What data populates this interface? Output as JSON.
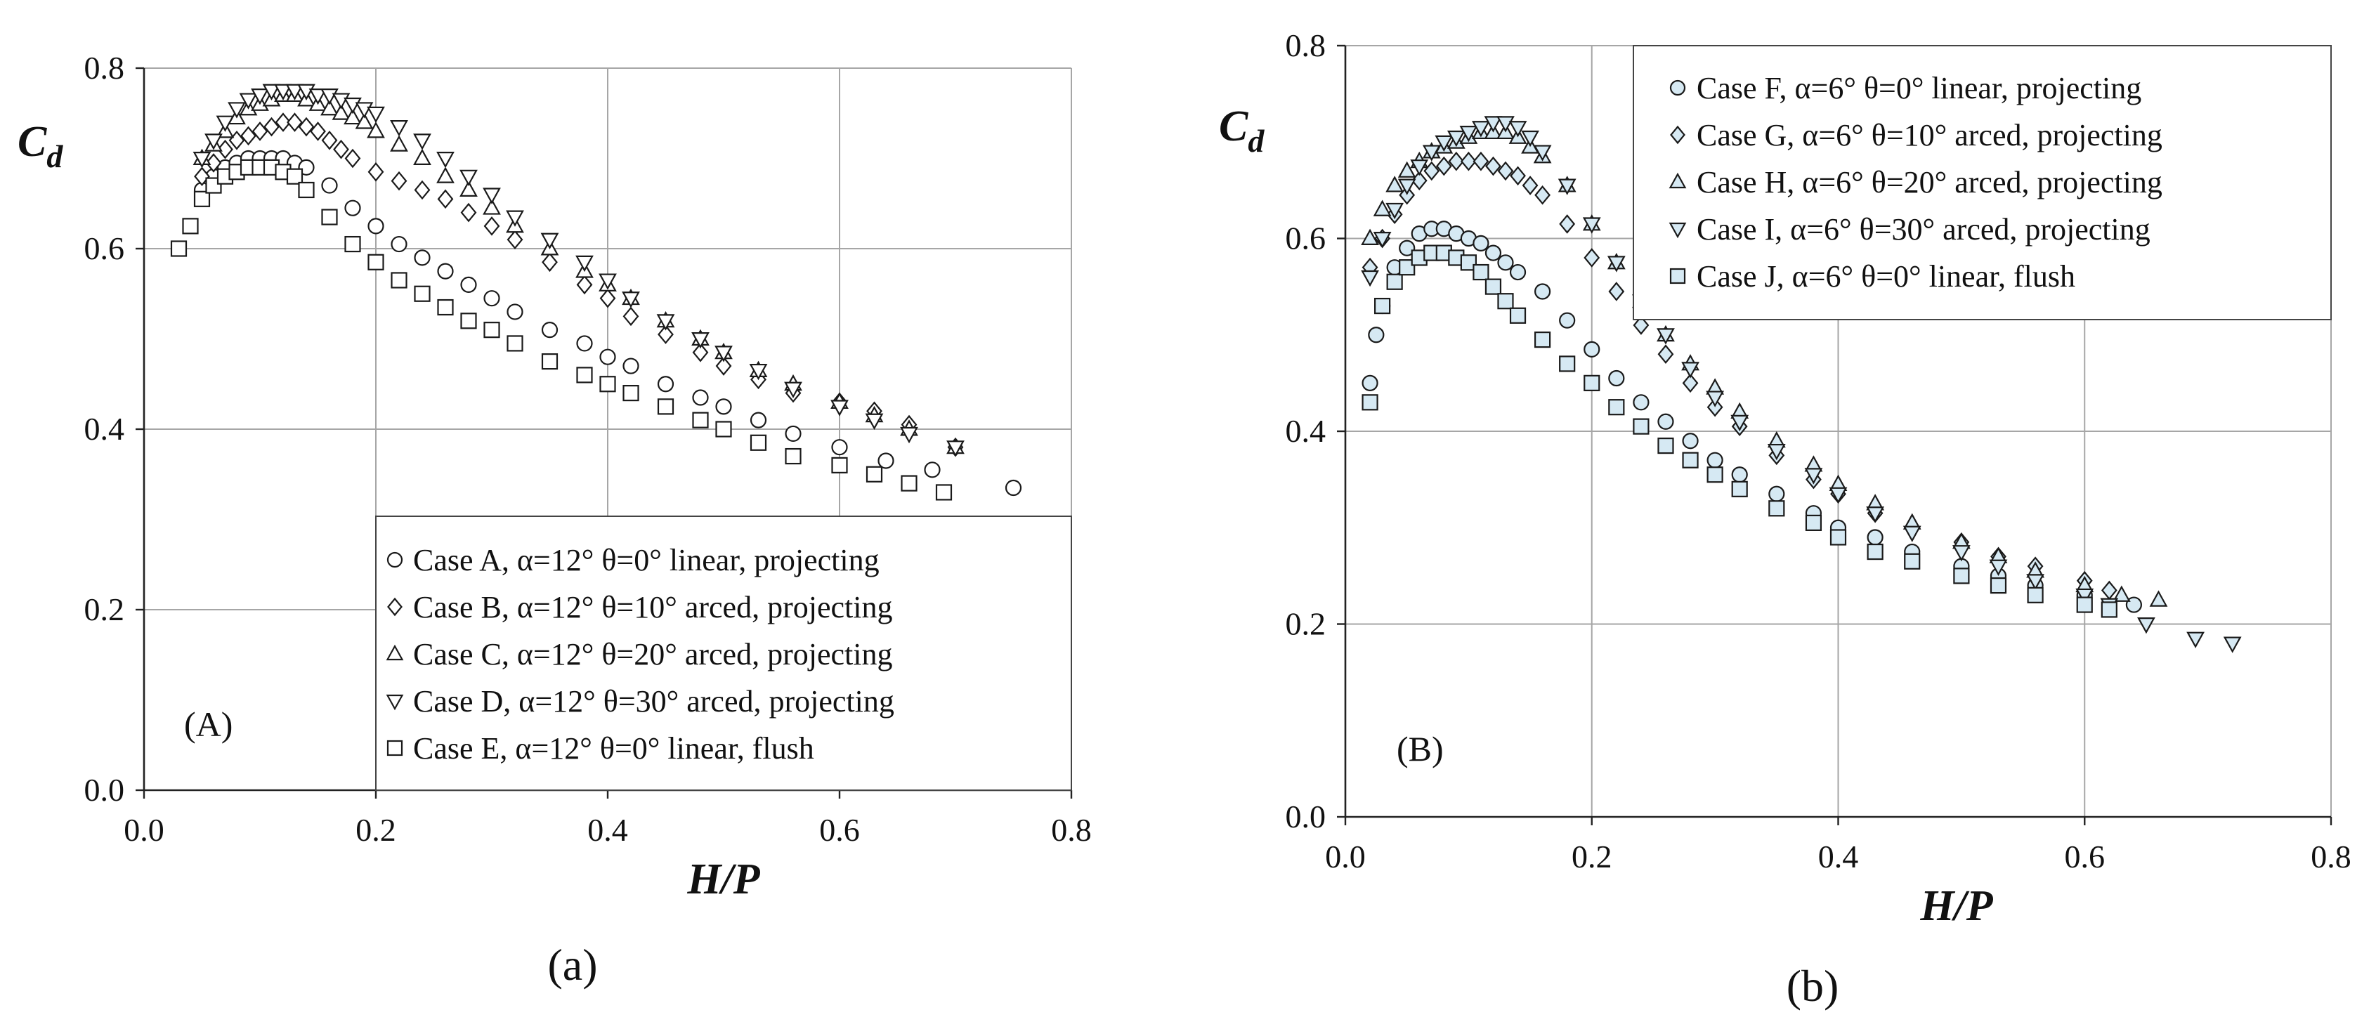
{
  "chart_data": [
    {
      "type": "scatter",
      "panel_label": "(A)",
      "sublabel": "(a)",
      "xlabel": "H/P",
      "ylabel_main": "C",
      "ylabel_sub": "d",
      "xlim": [
        0,
        0.8
      ],
      "ylim": [
        0,
        0.8
      ],
      "xticks": [
        "0.0",
        "0.2",
        "0.4",
        "0.6",
        "0.8"
      ],
      "yticks": [
        "0.0",
        "0.2",
        "0.4",
        "0.6",
        "0.8"
      ],
      "grid": true,
      "legend_position": "bottom-right",
      "series": [
        {
          "name": "Case A",
          "label": "Case A, α=12° θ=0° linear, projecting",
          "marker": "circle",
          "fill": "#ffffff",
          "x": [
            0.05,
            0.06,
            0.07,
            0.08,
            0.09,
            0.1,
            0.11,
            0.12,
            0.13,
            0.14,
            0.16,
            0.18,
            0.2,
            0.22,
            0.24,
            0.26,
            0.28,
            0.3,
            0.32,
            0.35,
            0.38,
            0.4,
            0.42,
            0.45,
            0.48,
            0.5,
            0.53,
            0.56,
            0.6,
            0.64,
            0.68,
            0.75
          ],
          "y": [
            0.665,
            0.68,
            0.69,
            0.695,
            0.7,
            0.7,
            0.7,
            0.7,
            0.695,
            0.69,
            0.67,
            0.645,
            0.625,
            0.605,
            0.59,
            0.575,
            0.56,
            0.545,
            0.53,
            0.51,
            0.495,
            0.48,
            0.47,
            0.45,
            0.435,
            0.425,
            0.41,
            0.395,
            0.38,
            0.365,
            0.355,
            0.335
          ]
        },
        {
          "name": "Case B",
          "label": "Case B, α=12° θ=10° arced, projecting",
          "marker": "diamond",
          "fill": "#ffffff",
          "x": [
            0.05,
            0.06,
            0.07,
            0.08,
            0.09,
            0.1,
            0.11,
            0.12,
            0.13,
            0.14,
            0.15,
            0.16,
            0.17,
            0.18,
            0.2,
            0.22,
            0.24,
            0.26,
            0.28,
            0.3,
            0.32,
            0.35,
            0.38,
            0.4,
            0.42,
            0.45,
            0.48,
            0.5,
            0.53,
            0.56,
            0.6,
            0.63,
            0.66,
            0.7
          ],
          "y": [
            0.68,
            0.695,
            0.71,
            0.72,
            0.725,
            0.73,
            0.735,
            0.74,
            0.74,
            0.735,
            0.73,
            0.72,
            0.71,
            0.7,
            0.685,
            0.675,
            0.665,
            0.655,
            0.64,
            0.625,
            0.61,
            0.585,
            0.56,
            0.545,
            0.525,
            0.505,
            0.485,
            0.47,
            0.455,
            0.44,
            0.43,
            0.42,
            0.405,
            0.38
          ]
        },
        {
          "name": "Case C",
          "label": "Case C, α=12° θ=20° arced, projecting",
          "marker": "triangle-up",
          "fill": "#ffffff",
          "x": [
            0.05,
            0.06,
            0.07,
            0.08,
            0.09,
            0.1,
            0.11,
            0.12,
            0.13,
            0.14,
            0.15,
            0.16,
            0.17,
            0.18,
            0.19,
            0.2,
            0.22,
            0.24,
            0.26,
            0.28,
            0.3,
            0.32,
            0.35,
            0.38,
            0.4,
            0.42,
            0.45,
            0.48,
            0.5,
            0.53,
            0.56,
            0.6,
            0.63,
            0.66,
            0.7
          ],
          "y": [
            0.7,
            0.715,
            0.73,
            0.745,
            0.755,
            0.76,
            0.765,
            0.77,
            0.77,
            0.765,
            0.76,
            0.755,
            0.75,
            0.745,
            0.74,
            0.73,
            0.715,
            0.7,
            0.68,
            0.665,
            0.645,
            0.625,
            0.6,
            0.575,
            0.56,
            0.545,
            0.52,
            0.5,
            0.485,
            0.465,
            0.45,
            0.43,
            0.415,
            0.4,
            0.38
          ]
        },
        {
          "name": "Case D",
          "label": "Case D, α=12° θ=30° arced, projecting",
          "marker": "triangle-down",
          "fill": "#ffffff",
          "x": [
            0.05,
            0.06,
            0.07,
            0.08,
            0.09,
            0.1,
            0.11,
            0.12,
            0.13,
            0.14,
            0.15,
            0.16,
            0.17,
            0.18,
            0.19,
            0.2,
            0.22,
            0.24,
            0.26,
            0.28,
            0.3,
            0.32,
            0.35,
            0.38,
            0.4,
            0.42,
            0.45,
            0.48,
            0.5,
            0.53,
            0.56,
            0.6,
            0.63,
            0.66,
            0.7
          ],
          "y": [
            0.7,
            0.72,
            0.74,
            0.755,
            0.765,
            0.77,
            0.775,
            0.775,
            0.775,
            0.775,
            0.77,
            0.77,
            0.765,
            0.76,
            0.755,
            0.75,
            0.735,
            0.72,
            0.7,
            0.68,
            0.66,
            0.635,
            0.61,
            0.585,
            0.565,
            0.545,
            0.52,
            0.5,
            0.485,
            0.465,
            0.445,
            0.425,
            0.41,
            0.395,
            0.38
          ]
        },
        {
          "name": "Case E",
          "label": "Case E, α=12° θ=0° linear, flush",
          "marker": "square",
          "fill": "#ffffff",
          "x": [
            0.03,
            0.04,
            0.05,
            0.06,
            0.07,
            0.08,
            0.09,
            0.1,
            0.11,
            0.12,
            0.13,
            0.14,
            0.16,
            0.18,
            0.2,
            0.22,
            0.24,
            0.26,
            0.28,
            0.3,
            0.32,
            0.35,
            0.38,
            0.4,
            0.42,
            0.45,
            0.48,
            0.5,
            0.53,
            0.56,
            0.6,
            0.63,
            0.66,
            0.69
          ],
          "y": [
            0.6,
            0.625,
            0.655,
            0.67,
            0.68,
            0.685,
            0.69,
            0.69,
            0.69,
            0.685,
            0.68,
            0.665,
            0.635,
            0.605,
            0.585,
            0.565,
            0.55,
            0.535,
            0.52,
            0.51,
            0.495,
            0.475,
            0.46,
            0.45,
            0.44,
            0.425,
            0.41,
            0.4,
            0.385,
            0.37,
            0.36,
            0.35,
            0.34,
            0.33
          ]
        }
      ]
    },
    {
      "type": "scatter",
      "panel_label": "(B)",
      "sublabel": "(b)",
      "xlabel": "H/P",
      "ylabel_main": "C",
      "ylabel_sub": "d",
      "xlim": [
        0,
        0.8
      ],
      "ylim": [
        0,
        0.8
      ],
      "xticks": [
        "0.0",
        "0.2",
        "0.4",
        "0.6",
        "0.8"
      ],
      "yticks": [
        "0.0",
        "0.2",
        "0.4",
        "0.6",
        "0.8"
      ],
      "grid": true,
      "legend_position": "top-right",
      "series": [
        {
          "name": "Case F",
          "label": "Case F, α=6° θ=0° linear, projecting",
          "marker": "circle",
          "fill": "#d6e9f3",
          "x": [
            0.02,
            0.025,
            0.03,
            0.04,
            0.05,
            0.06,
            0.07,
            0.08,
            0.09,
            0.1,
            0.11,
            0.12,
            0.13,
            0.14,
            0.16,
            0.18,
            0.2,
            0.22,
            0.24,
            0.26,
            0.28,
            0.3,
            0.32,
            0.35,
            0.38,
            0.4,
            0.43,
            0.46,
            0.5,
            0.53,
            0.56,
            0.6,
            0.64
          ],
          "y": [
            0.45,
            0.5,
            0.53,
            0.57,
            0.59,
            0.605,
            0.61,
            0.61,
            0.605,
            0.6,
            0.595,
            0.585,
            0.575,
            0.565,
            0.545,
            0.515,
            0.485,
            0.455,
            0.43,
            0.41,
            0.39,
            0.37,
            0.355,
            0.335,
            0.315,
            0.3,
            0.29,
            0.275,
            0.26,
            0.25,
            0.24,
            0.23,
            0.22
          ]
        },
        {
          "name": "Case G",
          "label": "Case G, α=6° θ=10° arced, projecting",
          "marker": "diamond",
          "fill": "#d6e9f3",
          "x": [
            0.02,
            0.03,
            0.04,
            0.05,
            0.06,
            0.07,
            0.08,
            0.09,
            0.1,
            0.11,
            0.12,
            0.13,
            0.14,
            0.15,
            0.16,
            0.18,
            0.2,
            0.22,
            0.24,
            0.26,
            0.28,
            0.3,
            0.32,
            0.35,
            0.38,
            0.4,
            0.43,
            0.46,
            0.5,
            0.53,
            0.56,
            0.6,
            0.62
          ],
          "y": [
            0.57,
            0.6,
            0.625,
            0.645,
            0.66,
            0.67,
            0.675,
            0.68,
            0.68,
            0.68,
            0.675,
            0.67,
            0.665,
            0.655,
            0.645,
            0.615,
            0.58,
            0.545,
            0.51,
            0.48,
            0.45,
            0.425,
            0.405,
            0.375,
            0.35,
            0.335,
            0.315,
            0.3,
            0.285,
            0.27,
            0.26,
            0.245,
            0.235
          ]
        },
        {
          "name": "Case H",
          "label": "Case H, α=6° θ=20° arced, projecting",
          "marker": "triangle-up",
          "fill": "#d6e9f3",
          "x": [
            0.02,
            0.03,
            0.04,
            0.05,
            0.06,
            0.07,
            0.08,
            0.09,
            0.1,
            0.11,
            0.12,
            0.13,
            0.14,
            0.15,
            0.16,
            0.18,
            0.2,
            0.22,
            0.24,
            0.26,
            0.28,
            0.3,
            0.32,
            0.35,
            0.38,
            0.4,
            0.43,
            0.46,
            0.5,
            0.53,
            0.56,
            0.6,
            0.63,
            0.66
          ],
          "y": [
            0.6,
            0.63,
            0.655,
            0.67,
            0.68,
            0.69,
            0.695,
            0.7,
            0.705,
            0.71,
            0.71,
            0.71,
            0.705,
            0.695,
            0.685,
            0.655,
            0.615,
            0.575,
            0.535,
            0.5,
            0.47,
            0.445,
            0.42,
            0.39,
            0.365,
            0.345,
            0.325,
            0.305,
            0.285,
            0.27,
            0.255,
            0.24,
            0.23,
            0.225
          ]
        },
        {
          "name": "Case I",
          "label": "Case I, α=6° θ=30° arced, projecting",
          "marker": "triangle-down",
          "fill": "#d6e9f3",
          "x": [
            0.02,
            0.03,
            0.04,
            0.05,
            0.06,
            0.07,
            0.08,
            0.09,
            0.1,
            0.11,
            0.12,
            0.13,
            0.14,
            0.15,
            0.16,
            0.18,
            0.2,
            0.22,
            0.24,
            0.26,
            0.28,
            0.3,
            0.32,
            0.35,
            0.38,
            0.4,
            0.43,
            0.46,
            0.5,
            0.53,
            0.56,
            0.6,
            0.62,
            0.65,
            0.69,
            0.72
          ],
          "y": [
            0.56,
            0.6,
            0.63,
            0.655,
            0.675,
            0.69,
            0.7,
            0.705,
            0.71,
            0.715,
            0.72,
            0.72,
            0.715,
            0.705,
            0.69,
            0.655,
            0.615,
            0.575,
            0.535,
            0.5,
            0.465,
            0.435,
            0.41,
            0.38,
            0.355,
            0.335,
            0.315,
            0.295,
            0.275,
            0.26,
            0.245,
            0.23,
            0.22,
            0.2,
            0.185,
            0.18
          ]
        },
        {
          "name": "Case J",
          "label": "Case J, α=6° θ=0° linear, flush",
          "marker": "square",
          "fill": "#d6e9f3",
          "x": [
            0.02,
            0.03,
            0.04,
            0.05,
            0.06,
            0.07,
            0.08,
            0.09,
            0.1,
            0.11,
            0.12,
            0.13,
            0.14,
            0.16,
            0.18,
            0.2,
            0.22,
            0.24,
            0.26,
            0.28,
            0.3,
            0.32,
            0.35,
            0.38,
            0.4,
            0.43,
            0.46,
            0.5,
            0.53,
            0.56,
            0.6,
            0.62
          ],
          "y": [
            0.43,
            0.53,
            0.555,
            0.57,
            0.58,
            0.585,
            0.585,
            0.58,
            0.575,
            0.565,
            0.55,
            0.535,
            0.52,
            0.495,
            0.47,
            0.45,
            0.425,
            0.405,
            0.385,
            0.37,
            0.355,
            0.34,
            0.32,
            0.305,
            0.29,
            0.275,
            0.265,
            0.25,
            0.24,
            0.23,
            0.22,
            0.215
          ]
        }
      ]
    }
  ]
}
